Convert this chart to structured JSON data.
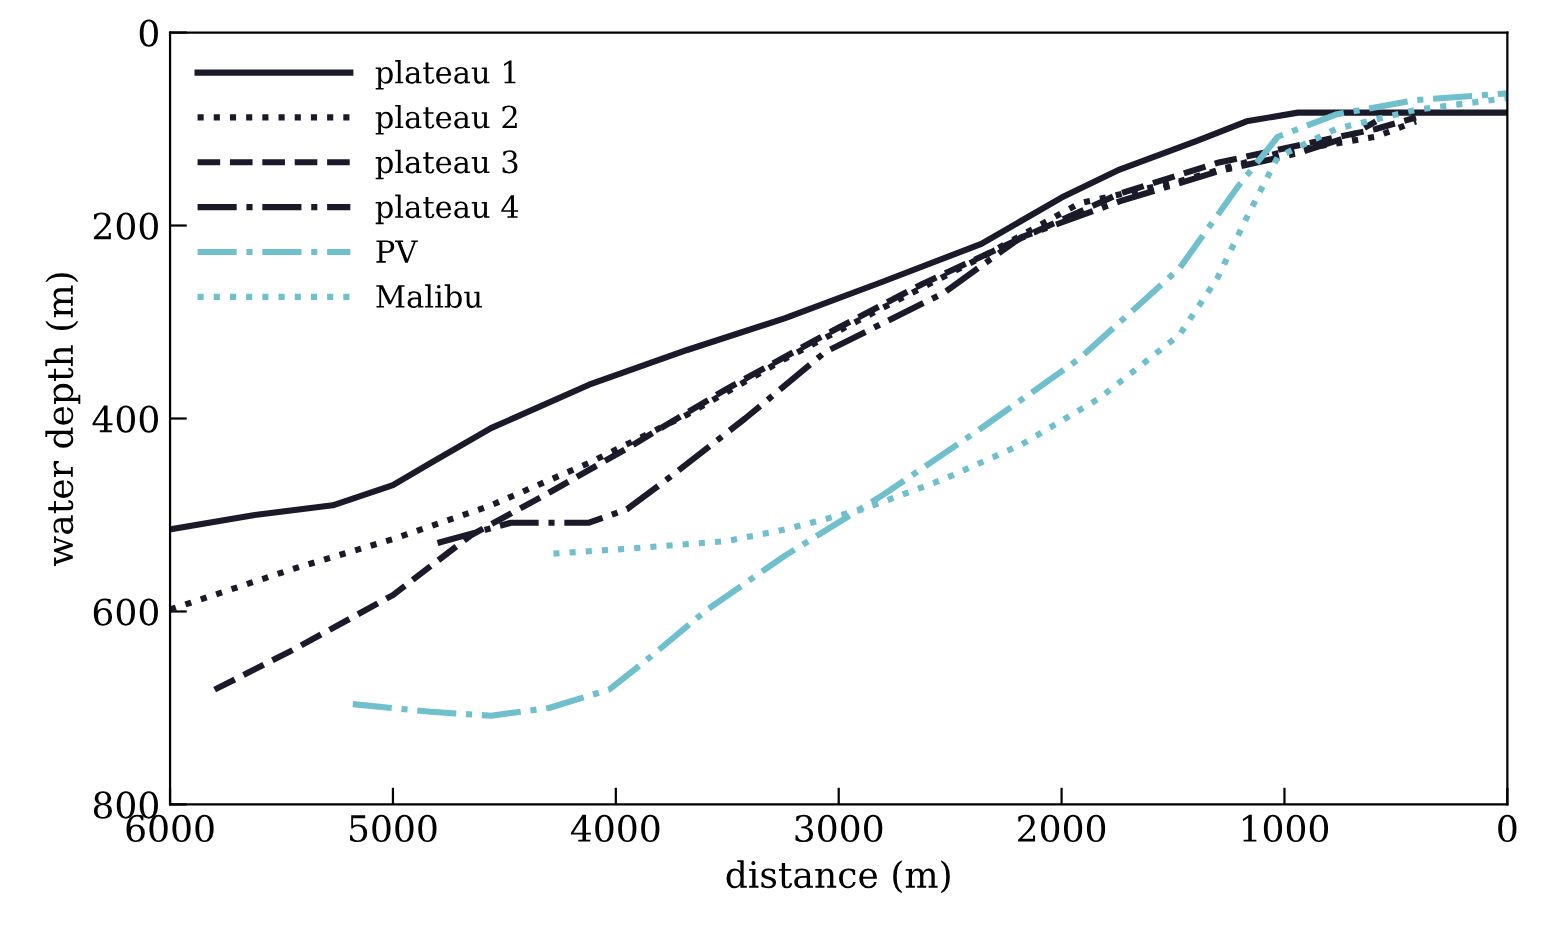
{
  "chart_data": {
    "type": "line",
    "xlabel": "distance (m)",
    "ylabel": "water depth (m)",
    "xlim": [
      6000,
      0
    ],
    "xticks": [
      6000,
      5000,
      4000,
      3000,
      2000,
      1000,
      0
    ],
    "ylim": [
      800,
      0
    ],
    "yticks": [
      0,
      200,
      400,
      600,
      800
    ],
    "grid": false,
    "legend": "top left",
    "marker": "none",
    "series": [
      {
        "name": "plateau 1",
        "color": "#1a1a2a",
        "line_style": "solid",
        "x": [
          6000,
          5620,
          5270,
          5000,
          4830,
          4560,
          4120,
          3680,
          3240,
          2800,
          2360,
          2000,
          1740,
          1390,
          1170,
          940,
          590,
          0
        ],
        "values": [
          515,
          500,
          490,
          469,
          446,
          410,
          365,
          329,
          296,
          258,
          219,
          171,
          142,
          112,
          92,
          83,
          83,
          83
        ]
      },
      {
        "name": "plateau 2",
        "color": "#1a1a2a",
        "line_style": "dotted",
        "x": [
          6000,
          5450,
          5000,
          4560,
          4120,
          3680,
          3240,
          2800,
          2360,
          1920,
          1470,
          1030,
          590,
          410
        ],
        "values": [
          598,
          556,
          525,
          490,
          446,
          396,
          338,
          285,
          233,
          177,
          154,
          125,
          108,
          92
        ]
      },
      {
        "name": "plateau 3",
        "color": "#1a1a2a",
        "line_style": "dashed",
        "x": [
          5800,
          5450,
          5000,
          4650,
          4300,
          3950,
          3500,
          3060,
          2620,
          2180,
          1740,
          1300,
          940,
          590,
          410
        ],
        "values": [
          681,
          640,
          583,
          521,
          477,
          431,
          369,
          313,
          260,
          213,
          167,
          135,
          117,
          100,
          88
        ]
      },
      {
        "name": "plateau 4",
        "color": "#1a1a2a",
        "line_style": "dashdot",
        "x": [
          4800,
          4470,
          4120,
          3950,
          3770,
          3420,
          3060,
          2530,
          2180,
          1740,
          1300,
          940,
          710,
          590
        ],
        "values": [
          529,
          508,
          508,
          494,
          463,
          400,
          331,
          270,
          212,
          175,
          144,
          125,
          108,
          92
        ]
      },
      {
        "name": "PV",
        "color": "#6fbfcc",
        "line_style": "dashdot",
        "x": [
          5180,
          4830,
          4560,
          4300,
          4030,
          3860,
          3590,
          3240,
          2800,
          2360,
          1920,
          1470,
          1210,
          1030,
          770,
          410,
          0
        ],
        "values": [
          696,
          704,
          708,
          700,
          681,
          650,
          598,
          542,
          479,
          410,
          338,
          244,
          160,
          108,
          85,
          70,
          63
        ]
      },
      {
        "name": "Malibu",
        "color": "#6fbfcc",
        "line_style": "dotted",
        "x": [
          4280,
          3950,
          3500,
          3240,
          2890,
          2530,
          2180,
          1830,
          1470,
          1300,
          1170,
          1030,
          770,
          410,
          0
        ],
        "values": [
          540,
          535,
          527,
          515,
          494,
          463,
          427,
          379,
          313,
          254,
          192,
          129,
          100,
          80,
          68
        ]
      }
    ]
  }
}
